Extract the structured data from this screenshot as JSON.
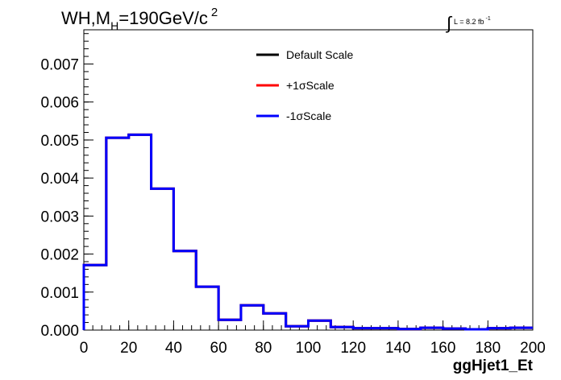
{
  "chart_data": {
    "type": "histogram",
    "title": {
      "process": "WH,M",
      "subscript": "H",
      "rest": "=190GeV/c",
      "superscript": "2"
    },
    "lumi": {
      "symbol": "∫",
      "text": "L = 8.2 fb",
      "superscript": "-1"
    },
    "xlabel": "ggHjet1_Et",
    "ylabel": "",
    "xlim": [
      0,
      200
    ],
    "ylim": [
      0,
      0.0079
    ],
    "x_ticks": [
      "0",
      "20",
      "40",
      "60",
      "80",
      "100",
      "120",
      "140",
      "160",
      "180",
      "200"
    ],
    "y_ticks": [
      "0.000",
      "0.001",
      "0.002",
      "0.003",
      "0.004",
      "0.005",
      "0.006",
      "0.007"
    ],
    "bin_edges": [
      0,
      10,
      20,
      30,
      40,
      50,
      60,
      70,
      80,
      90,
      100,
      110,
      120,
      130,
      140,
      150,
      160,
      170,
      180,
      190,
      200
    ],
    "legend_position": "top-center",
    "series": [
      {
        "name": "Default Scale",
        "color": "#000000",
        "values": [
          0.00171,
          0.00506,
          0.00514,
          0.00372,
          0.00208,
          0.00114,
          0.00027,
          0.00065,
          0.00044,
          0.0001,
          0.00025,
          8e-05,
          5e-05,
          5e-05,
          3e-05,
          6e-05,
          4e-05,
          2e-05,
          5e-05,
          6e-05
        ]
      },
      {
        "name": "+1σScale",
        "color": "#ff0000",
        "values": [
          0.00171,
          0.00506,
          0.00514,
          0.00372,
          0.00208,
          0.00114,
          0.00027,
          0.00065,
          0.00044,
          0.0001,
          0.00025,
          8e-05,
          5e-05,
          5e-05,
          3e-05,
          6e-05,
          4e-05,
          2e-05,
          5e-05,
          6e-05
        ]
      },
      {
        "name": "-1σScale",
        "color": "#0000ff",
        "values": [
          0.00171,
          0.00506,
          0.00514,
          0.00372,
          0.00208,
          0.00114,
          0.00027,
          0.00065,
          0.00044,
          0.0001,
          0.00025,
          8e-05,
          5e-05,
          5e-05,
          3e-05,
          6e-05,
          4e-05,
          2e-05,
          5e-05,
          6e-05
        ]
      }
    ]
  }
}
